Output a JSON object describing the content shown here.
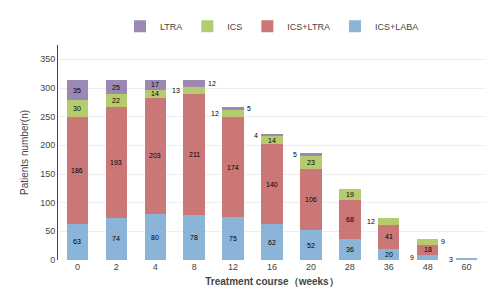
{
  "chart_data": {
    "type": "bar",
    "stacked": true,
    "data_labels": true,
    "grid": true,
    "legend": "top",
    "xlabel": "Treatment course（weeks）",
    "ylabel": "Patients number(n)",
    "categories": [
      "0",
      "2",
      "4",
      "8",
      "12",
      "16",
      "20",
      "28",
      "36",
      "48",
      "60"
    ],
    "ylim": [
      0,
      375
    ],
    "yticks": [
      0,
      50,
      100,
      150,
      200,
      250,
      300,
      350
    ],
    "series": [
      {
        "name": "ICS+LABA",
        "color": "#8ab4d8",
        "values": [
          63,
          74,
          80,
          78,
          75,
          62,
          52,
          36,
          20,
          9,
          3
        ]
      },
      {
        "name": "ICS+LTRA",
        "color": "#cc7777",
        "values": [
          186,
          193,
          203,
          211,
          174,
          140,
          106,
          68,
          41,
          18,
          0
        ]
      },
      {
        "name": "ICS",
        "color": "#b5cc6e",
        "values": [
          30,
          22,
          14,
          13,
          12,
          14,
          23,
          19,
          12,
          9,
          0
        ]
      },
      {
        "name": "LTRA",
        "color": "#9b89b4",
        "values": [
          35,
          25,
          17,
          12,
          5,
          4,
          5,
          0,
          0,
          0,
          0
        ]
      }
    ]
  }
}
